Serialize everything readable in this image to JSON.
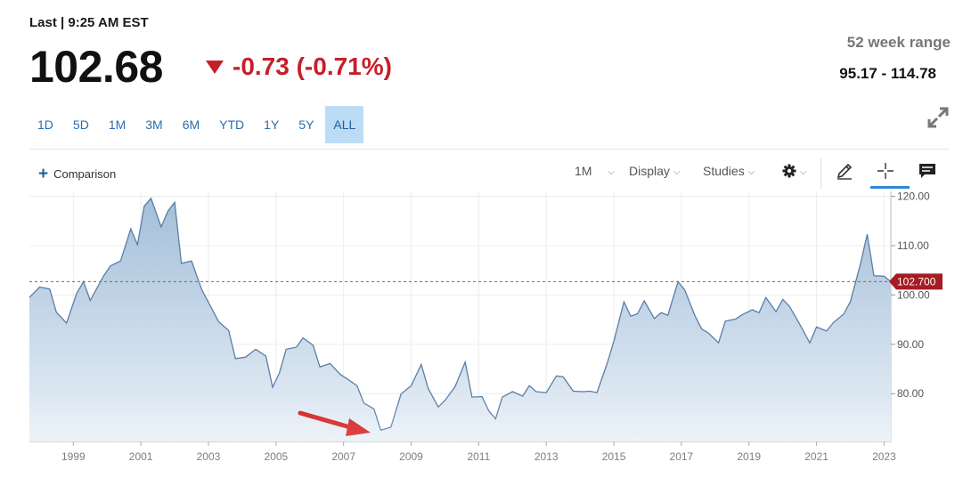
{
  "header": {
    "last_label": "Last | 9:25 AM EST",
    "price": "102.68",
    "change": "-0.73 (-0.71%)",
    "range_label": "52 week range",
    "range_value": "95.17 - 114.78"
  },
  "ranges": [
    "1D",
    "5D",
    "1M",
    "3M",
    "6M",
    "YTD",
    "1Y",
    "5Y",
    "ALL"
  ],
  "active_range": "ALL",
  "toolbar": {
    "comparison": "Comparison",
    "interval": "1M",
    "display": "Display",
    "studies": "Studies"
  },
  "icons": [
    "expand-icon",
    "plus-icon",
    "gear-icon",
    "pencil-icon",
    "crosshair-icon",
    "comment-icon",
    "down-arrow-icon"
  ],
  "colors": {
    "accent": "#2b6cb0",
    "negative": "#c81e2a",
    "area_fill": "#a9c3dc",
    "line": "#5a7ea6"
  },
  "chart_data": {
    "type": "area",
    "x_ticks": [
      "1999",
      "2001",
      "2003",
      "2005",
      "2007",
      "2009",
      "2011",
      "2013",
      "2015",
      "2017",
      "2019",
      "2021",
      "2023"
    ],
    "y_ticks": [
      "120.00",
      "110.00",
      "100.00",
      "90.00",
      "80.00"
    ],
    "ylim": [
      70.3,
      121
    ],
    "last_value_label": "102.700",
    "reference_line": 102.7,
    "x": [
      1997.7,
      1998.0,
      1998.3,
      1998.5,
      1998.8,
      1999.1,
      1999.3,
      1999.5,
      1999.9,
      2000.1,
      2000.4,
      2000.7,
      2000.9,
      2001.1,
      2001.3,
      2001.6,
      2001.8,
      2002.0,
      2002.2,
      2002.5,
      2002.8,
      2003.0,
      2003.3,
      2003.6,
      2003.8,
      2004.1,
      2004.4,
      2004.7,
      2004.9,
      2005.1,
      2005.3,
      2005.6,
      2005.8,
      2006.1,
      2006.3,
      2006.6,
      2006.9,
      2007.1,
      2007.4,
      2007.6,
      2007.9,
      2008.1,
      2008.4,
      2008.7,
      2009.0,
      2009.3,
      2009.5,
      2009.8,
      2010.0,
      2010.3,
      2010.6,
      2010.8,
      2011.1,
      2011.3,
      2011.5,
      2011.7,
      2012.0,
      2012.3,
      2012.5,
      2012.7,
      2013.0,
      2013.3,
      2013.5,
      2013.8,
      2014.1,
      2014.3,
      2014.5,
      2014.8,
      2015.0,
      2015.3,
      2015.5,
      2015.7,
      2015.9,
      2016.2,
      2016.4,
      2016.6,
      2016.9,
      2017.1,
      2017.4,
      2017.6,
      2017.8,
      2018.1,
      2018.3,
      2018.6,
      2018.8,
      2019.1,
      2019.3,
      2019.5,
      2019.8,
      2020.0,
      2020.2,
      2020.5,
      2020.8,
      2021.0,
      2021.3,
      2021.5,
      2021.8,
      2022.0,
      2022.3,
      2022.5,
      2022.7,
      2023.0,
      2023.2
    ],
    "y": [
      99.5,
      101.6,
      101.2,
      96.5,
      94.3,
      100.3,
      102.7,
      98.9,
      103.9,
      105.9,
      106.9,
      113.4,
      110.2,
      118.0,
      119.6,
      113.8,
      117.0,
      118.8,
      106.4,
      106.9,
      101.1,
      98.5,
      94.6,
      92.8,
      87.1,
      87.4,
      89.0,
      87.6,
      81.3,
      84.2,
      89.0,
      89.4,
      91.3,
      89.8,
      85.4,
      86.1,
      83.9,
      83.0,
      81.6,
      78.1,
      76.9,
      72.6,
      73.2,
      79.9,
      81.6,
      85.9,
      81.1,
      77.3,
      78.6,
      81.4,
      86.4,
      79.3,
      79.4,
      76.5,
      74.9,
      79.3,
      80.4,
      79.5,
      81.6,
      80.4,
      80.2,
      83.6,
      83.4,
      80.5,
      80.4,
      80.5,
      80.2,
      86.1,
      90.6,
      98.6,
      95.7,
      96.2,
      98.8,
      95.2,
      96.4,
      95.9,
      102.7,
      101.0,
      95.8,
      93.1,
      92.3,
      90.3,
      94.7,
      95.1,
      96.0,
      97.0,
      96.4,
      99.5,
      96.6,
      99.1,
      97.7,
      94.1,
      90.3,
      93.5,
      92.7,
      94.4,
      96.1,
      98.6,
      106.3,
      112.3,
      103.9,
      103.8,
      102.7
    ]
  }
}
